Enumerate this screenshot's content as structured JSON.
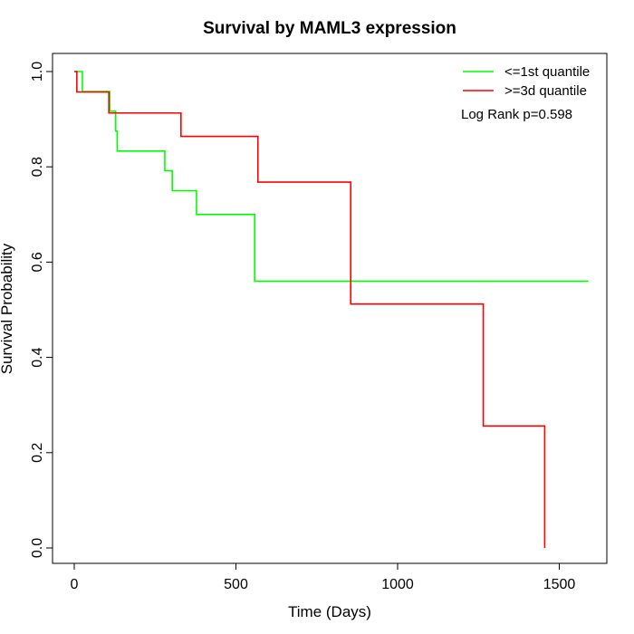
{
  "chart_data": {
    "type": "line",
    "title": "Survival by MAML3 expression",
    "xlabel": "Time (Days)",
    "ylabel": "Survival Probability",
    "xlim": [
      0,
      1590
    ],
    "ylim": [
      0,
      1
    ],
    "xticks": [
      0,
      500,
      1000,
      1500
    ],
    "yticks": [
      0.0,
      0.2,
      0.4,
      0.6,
      0.8,
      1.0
    ],
    "xtick_labels": [
      "0",
      "500",
      "1000",
      "1500"
    ],
    "ytick_labels": [
      "0.0",
      "0.2",
      "0.4",
      "0.6",
      "0.8",
      "1.0"
    ],
    "grid": false,
    "legend_position": "top-right",
    "annotation": "Log Rank p=0.598",
    "series": [
      {
        "name": "<=1st quantile",
        "color": "#00ff00",
        "step": true,
        "x": [
          0,
          25,
          110,
          128,
          133,
          280,
          303,
          378,
          558,
          1590
        ],
        "y": [
          1.0,
          0.958,
          0.917,
          0.875,
          0.833,
          0.792,
          0.75,
          0.7,
          0.56,
          0.56
        ]
      },
      {
        "name": ">=3d quantile",
        "color": "#ff0000",
        "step": true,
        "x": [
          0,
          8,
          107,
          330,
          568,
          855,
          1265,
          1455
        ],
        "y": [
          1.0,
          0.957,
          0.913,
          0.864,
          0.768,
          0.512,
          0.256,
          0.0
        ]
      }
    ]
  }
}
